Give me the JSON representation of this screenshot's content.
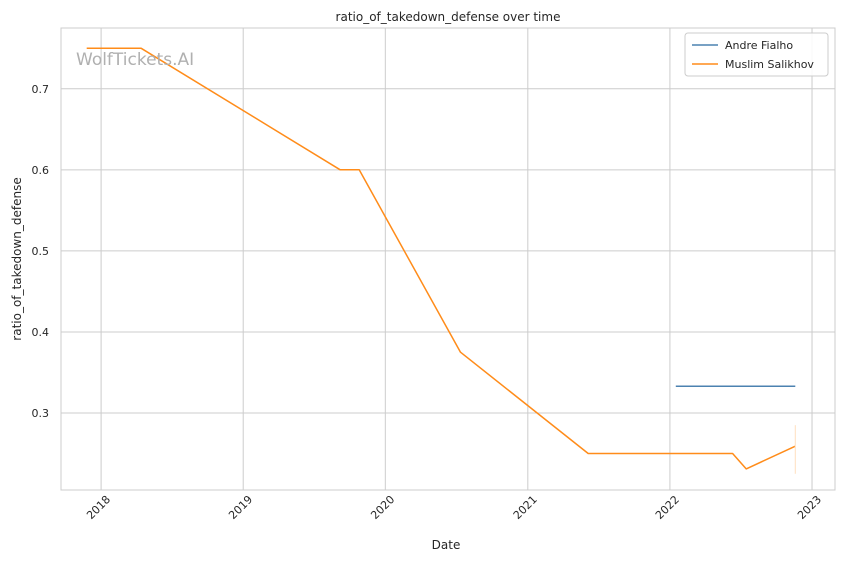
{
  "chart_data": {
    "type": "line",
    "title": "ratio_of_takedown_defense over time",
    "xlabel": "Date",
    "ylabel": "ratio_of_takedown_defense",
    "watermark": "WolfTickets.AI",
    "x_ticks": [
      "2018",
      "2019",
      "2020",
      "2021",
      "2022",
      "2023"
    ],
    "y_ticks": [
      "0.3",
      "0.4",
      "0.5",
      "0.6",
      "0.7"
    ],
    "xlim": [
      "2017-09-20",
      "2023-03-01"
    ],
    "ylim": [
      0.205,
      0.775
    ],
    "grid": true,
    "legend_position": "top-right",
    "series": [
      {
        "name": "Andre Fialho",
        "color": "#4c82b0",
        "points": [
          {
            "x": "2022-01-16",
            "y": 0.333
          },
          {
            "x": "2022-11-19",
            "y": 0.333
          }
        ]
      },
      {
        "name": "Muslim Salikhov",
        "color": "#ff8c1a",
        "points": [
          {
            "x": "2017-11-25",
            "y": 0.75
          },
          {
            "x": "2018-04-14",
            "y": 0.75
          },
          {
            "x": "2019-09-07",
            "y": 0.6
          },
          {
            "x": "2019-10-26",
            "y": 0.6
          },
          {
            "x": "2020-07-12",
            "y": 0.375
          },
          {
            "x": "2021-06-05",
            "y": 0.25
          },
          {
            "x": "2022-06-11",
            "y": 0.25
          },
          {
            "x": "2022-07-16",
            "y": 0.231
          },
          {
            "x": "2022-11-19",
            "y": 0.259
          }
        ]
      }
    ]
  }
}
